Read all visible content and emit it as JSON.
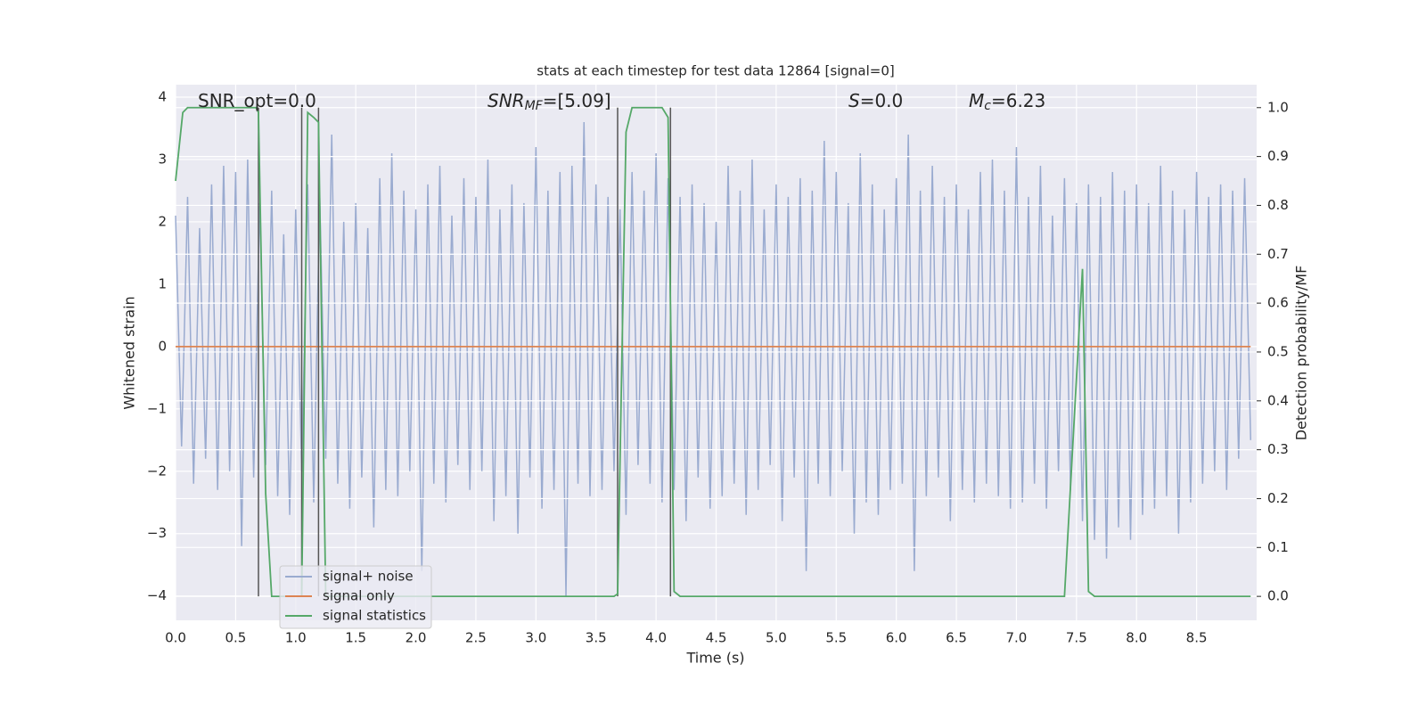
{
  "chart_data": {
    "type": "line",
    "title": "stats at each timestep for test data 12864 [signal=0]",
    "xlabel": "Time (s)",
    "ylabel": "Whitened strain",
    "y2label": "Detection probability/MF",
    "xlim": [
      0,
      9
    ],
    "ylim": [
      -4.39,
      4.2
    ],
    "y2lim": [
      -0.049,
      1.047
    ],
    "xticks": [
      {
        "value": 0,
        "label": "0.0"
      },
      0.5,
      {
        "value": 1,
        "label": "1.0"
      },
      1.5,
      {
        "value": 2,
        "label": "2.0"
      },
      2.5,
      {
        "value": 3,
        "label": "3.0"
      },
      3.5,
      {
        "value": 4,
        "label": "4.0"
      },
      4.5,
      {
        "value": 5,
        "label": "5.0"
      },
      5.5,
      {
        "value": 6,
        "label": "6.0"
      },
      6.5,
      {
        "value": 7,
        "label": "7.0"
      },
      7.5,
      {
        "value": 8,
        "label": "8.0"
      },
      8.5
    ],
    "yticks": [
      {
        "value": -4,
        "label": "−4"
      },
      {
        "value": -3,
        "label": "−3"
      },
      {
        "value": -2,
        "label": "−2"
      },
      {
        "value": -1,
        "label": "−1"
      },
      0,
      1,
      2,
      3,
      4
    ],
    "y2ticks": [
      {
        "value": 0,
        "label": "0.0"
      },
      0.1,
      0.2,
      0.3,
      0.4,
      0.5,
      0.6,
      0.7,
      0.8,
      0.9,
      {
        "value": 1,
        "label": "1.0"
      }
    ],
    "grid": true,
    "legend": "lower left",
    "annotations": [
      {
        "main": "SNR_opt=0.0"
      },
      {
        "main": "SNR",
        "sub": "MF",
        "tail": "=[5.09]"
      },
      {
        "main": "S",
        "tail": "=0.0"
      },
      {
        "main": "M",
        "sub": "c",
        "tail": "=6.23"
      }
    ],
    "series": [
      {
        "name": "signal+ noise",
        "color": "#9aabd0",
        "x": [
          0,
          0.05,
          0.1,
          0.15,
          0.2,
          0.25,
          0.3,
          0.35,
          0.4,
          0.45,
          0.5,
          0.55,
          0.6,
          0.65,
          0.7,
          0.75,
          0.8,
          0.85,
          0.9,
          0.95,
          1,
          1.05,
          1.1,
          1.15,
          1.2,
          1.25,
          1.3,
          1.35,
          1.4,
          1.45,
          1.5,
          1.55,
          1.6,
          1.65,
          1.7,
          1.75,
          1.8,
          1.85,
          1.9,
          1.95,
          2,
          2.05,
          2.1,
          2.15,
          2.2,
          2.25,
          2.3,
          2.35,
          2.4,
          2.45,
          2.5,
          2.55,
          2.6,
          2.65,
          2.7,
          2.75,
          2.8,
          2.85,
          2.9,
          2.95,
          3,
          3.05,
          3.1,
          3.15,
          3.2,
          3.25,
          3.3,
          3.35,
          3.4,
          3.45,
          3.5,
          3.55,
          3.6,
          3.65,
          3.7,
          3.75,
          3.8,
          3.85,
          3.9,
          3.95,
          4,
          4.05,
          4.1,
          4.15,
          4.2,
          4.25,
          4.3,
          4.35,
          4.4,
          4.45,
          4.5,
          4.55,
          4.6,
          4.65,
          4.7,
          4.75,
          4.8,
          4.85,
          4.9,
          4.95,
          5,
          5.05,
          5.1,
          5.15,
          5.2,
          5.25,
          5.3,
          5.35,
          5.4,
          5.45,
          5.5,
          5.55,
          5.6,
          5.65,
          5.7,
          5.75,
          5.8,
          5.85,
          5.9,
          5.95,
          6,
          6.05,
          6.1,
          6.15,
          6.2,
          6.25,
          6.3,
          6.35,
          6.4,
          6.45,
          6.5,
          6.55,
          6.6,
          6.65,
          6.7,
          6.75,
          6.8,
          6.85,
          6.9,
          6.95,
          7,
          7.05,
          7.1,
          7.15,
          7.2,
          7.25,
          7.3,
          7.35,
          7.4,
          7.45,
          7.5,
          7.55,
          7.6,
          7.65,
          7.7,
          7.75,
          7.8,
          7.85,
          7.9,
          7.95,
          8,
          8.05,
          8.1,
          8.15,
          8.2,
          8.25,
          8.3,
          8.35,
          8.4,
          8.45,
          8.5,
          8.55,
          8.6,
          8.65,
          8.7,
          8.75,
          8.8,
          8.85,
          8.9,
          8.95
        ],
        "values": [
          2.1,
          -1.6,
          2.4,
          -2.2,
          1.9,
          -1.8,
          2.6,
          -2.3,
          2.9,
          -2.0,
          2.8,
          -3.2,
          3.0,
          -2.1,
          2.3,
          -1.9,
          2.5,
          -2.4,
          1.8,
          -2.7,
          2.2,
          -2.0,
          2.6,
          -2.5,
          2.4,
          -1.8,
          3.4,
          -2.2,
          2.0,
          -2.6,
          2.3,
          -2.1,
          1.9,
          -2.9,
          2.7,
          -2.3,
          3.1,
          -2.4,
          2.5,
          -2.0,
          2.2,
          -3.6,
          2.6,
          -2.2,
          2.9,
          -2.5,
          2.1,
          -1.9,
          2.7,
          -2.3,
          2.4,
          -2.0,
          3.0,
          -2.8,
          2.2,
          -2.4,
          2.6,
          -3.0,
          2.3,
          -2.1,
          3.2,
          -2.6,
          2.5,
          -2.3,
          2.8,
          -4.0,
          2.9,
          -2.2,
          3.6,
          -2.4,
          2.6,
          -2.3,
          2.4,
          -2.0,
          2.2,
          -2.7,
          2.8,
          -1.9,
          2.5,
          -2.2,
          3.1,
          -2.5,
          2.7,
          -2.3,
          2.4,
          -2.8,
          2.6,
          -2.1,
          2.3,
          -2.6,
          2.0,
          -2.4,
          2.9,
          -2.2,
          2.5,
          -2.7,
          3.0,
          -2.3,
          2.2,
          -1.9,
          2.6,
          -2.8,
          2.4,
          -2.1,
          2.7,
          -3.6,
          2.5,
          -2.2,
          3.3,
          -2.4,
          2.8,
          -2.0,
          2.3,
          -3.0,
          3.1,
          -2.5,
          2.6,
          -2.7,
          2.2,
          -2.3,
          2.7,
          -2.2,
          3.4,
          -3.6,
          2.5,
          -2.4,
          2.9,
          -2.1,
          2.4,
          -2.8,
          2.6,
          -2.3,
          2.2,
          -2.5,
          2.8,
          -2.2,
          3.0,
          -2.4,
          2.5,
          -2.6,
          3.2,
          -2.5,
          2.4,
          -2.2,
          2.9,
          -2.6,
          2.1,
          -2.0,
          2.7,
          -2.3,
          2.3,
          -2.8,
          2.6,
          -3.1,
          2.4,
          -3.4,
          2.8,
          -2.9,
          2.5,
          -3.1,
          2.6,
          -2.7,
          2.3,
          -2.6,
          2.9,
          -2.4,
          2.5,
          -3.0,
          2.2,
          -2.5,
          2.8,
          -2.2,
          2.4,
          -2.0,
          2.6,
          -2.3,
          2.5,
          -1.8,
          2.7,
          -1.5
        ]
      },
      {
        "name": "signal only",
        "color": "#dd8452",
        "x": [
          0,
          8.95
        ],
        "values": [
          0,
          0
        ]
      },
      {
        "name": "signal statistics",
        "color": "#55a868",
        "axis": "y2",
        "x": [
          0,
          0.06,
          0.1,
          0.67,
          0.69,
          0.75,
          0.8,
          1.05,
          1.1,
          1.15,
          1.19,
          1.25,
          3.65,
          3.68,
          3.75,
          3.8,
          4.05,
          4.1,
          4.15,
          4.2,
          7.4,
          7.55,
          7.6,
          7.65,
          8.95
        ],
        "values": [
          0.85,
          0.99,
          1.0,
          1.0,
          0.99,
          0.21,
          0.0,
          0.0,
          0.99,
          0.98,
          0.97,
          0.0,
          0.0,
          0.005,
          0.95,
          1.0,
          1.0,
          0.98,
          0.01,
          0.0,
          0.0,
          0.67,
          0.01,
          0.0,
          0.0
        ]
      }
    ],
    "vlines": {
      "x": [
        0.69,
        1.05,
        1.19,
        3.68,
        4.12
      ],
      "color": "#555555"
    }
  }
}
